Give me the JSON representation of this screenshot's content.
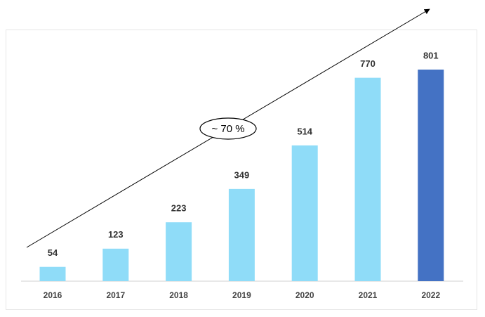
{
  "chart_data": {
    "type": "bar",
    "categories": [
      "2016",
      "2017",
      "2018",
      "2019",
      "2020",
      "2021",
      "2022"
    ],
    "values": [
      54,
      123,
      223,
      349,
      514,
      770,
      801
    ],
    "colors": [
      "#8fdcf8",
      "#8fdcf8",
      "#8fdcf8",
      "#8fdcf8",
      "#8fdcf8",
      "#8fdcf8",
      "#4472c4"
    ],
    "annotation": "~ 70 %"
  }
}
